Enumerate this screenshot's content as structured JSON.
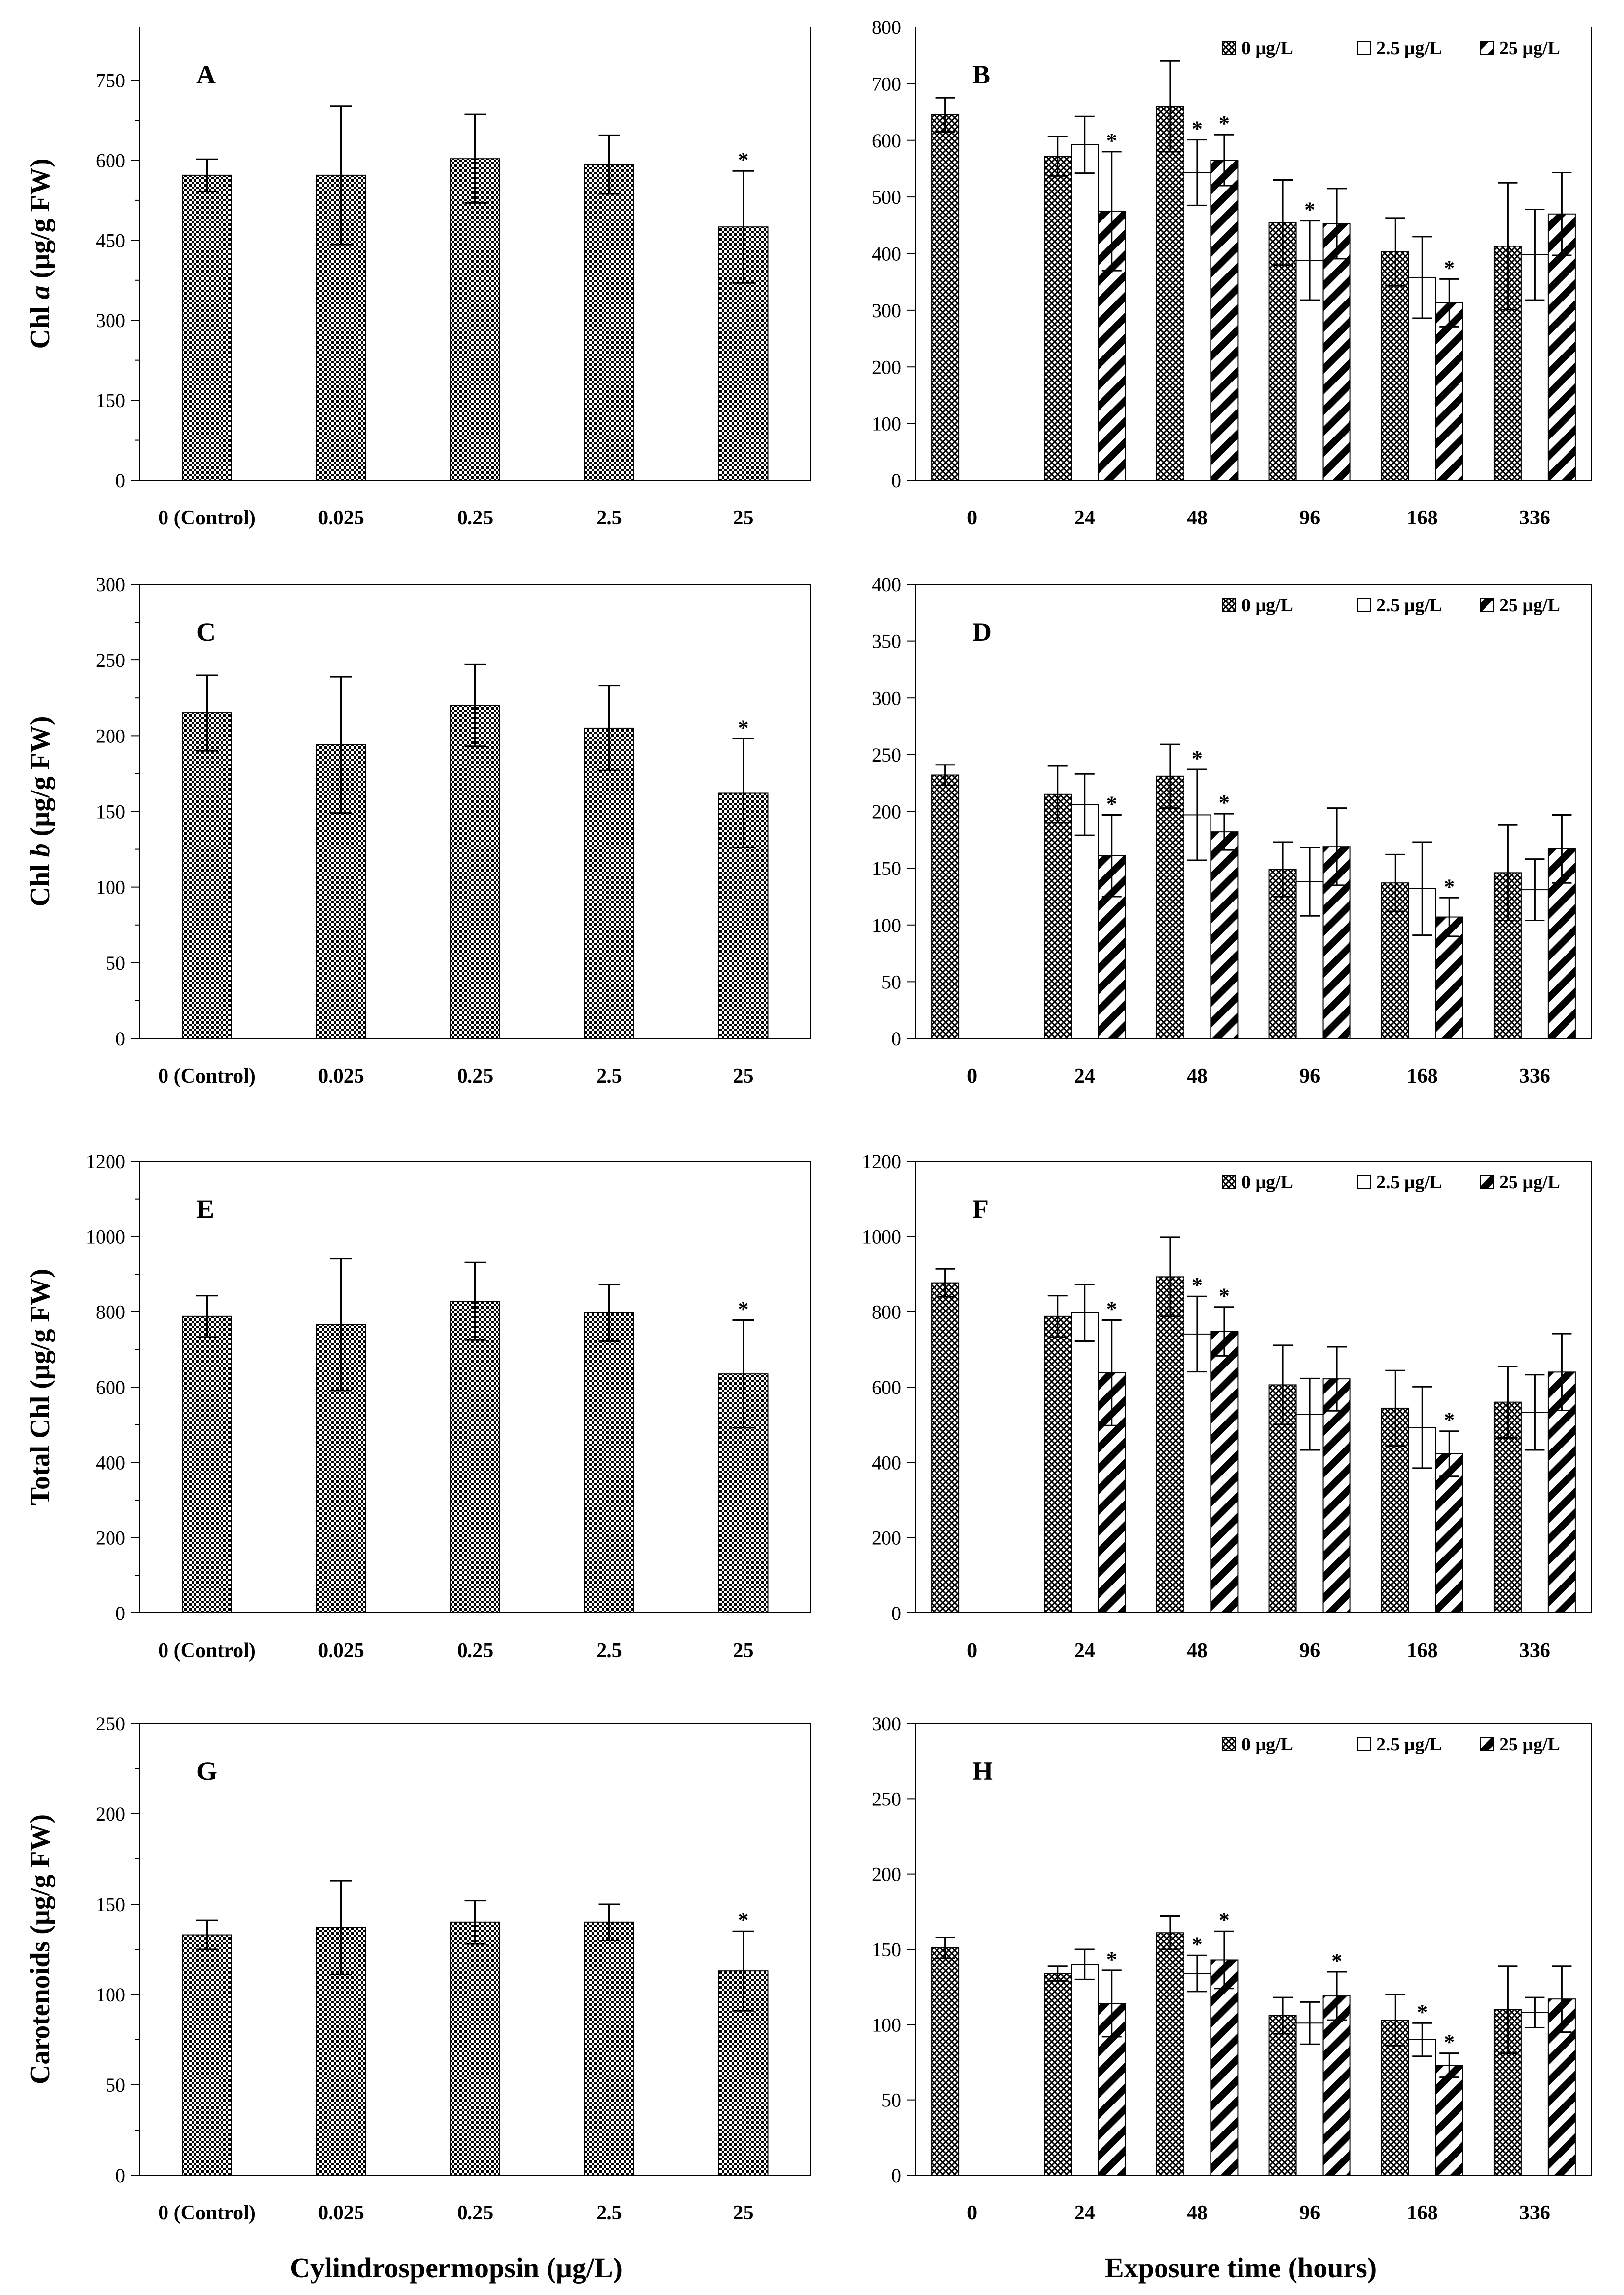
{
  "figure": {
    "xlabel_left": "Cylindrospermopsin (μg/L)",
    "xlabel_right": "Exposure time (hours)"
  },
  "legend_labels": [
    "0 μg/L",
    "2.5 μg/L",
    "25 μg/L"
  ],
  "chart_data": [
    {
      "panel": "A",
      "type": "bar",
      "ylabel_prefix": "Chl ",
      "ylabel_italic": "a",
      "ylabel_suffix": " (μg/g FW)",
      "ylim": [
        0,
        850
      ],
      "yticks": [
        0,
        150,
        300,
        450,
        600,
        750
      ],
      "minor_ticks": true,
      "categories": [
        "0 (Control)",
        "0.025",
        "0.25",
        "2.5",
        "25"
      ],
      "values": [
        572,
        572,
        603,
        592,
        475
      ],
      "errors": [
        30,
        130,
        83,
        55,
        105
      ],
      "significant": [
        false,
        false,
        false,
        false,
        true
      ]
    },
    {
      "panel": "B",
      "type": "bar",
      "ylim": [
        0,
        800
      ],
      "yticks": [
        0,
        100,
        200,
        300,
        400,
        500,
        600,
        700,
        800
      ],
      "minor_ticks": false,
      "categories": [
        "0",
        "24",
        "48",
        "96",
        "168",
        "336"
      ],
      "legend": "top-right",
      "series": [
        {
          "name": "0 μg/L",
          "values": [
            645,
            572,
            660,
            455,
            403,
            413
          ],
          "errors": [
            30,
            35,
            80,
            75,
            60,
            112
          ],
          "significant": [
            false,
            false,
            false,
            false,
            false,
            false
          ]
        },
        {
          "name": "2.5 μg/L",
          "values": [
            0,
            592,
            543,
            388,
            358,
            398
          ],
          "errors": [
            0,
            50,
            58,
            70,
            72,
            80
          ],
          "significant": [
            false,
            false,
            true,
            true,
            false,
            false
          ]
        },
        {
          "name": "25 μg/L",
          "values": [
            0,
            475,
            565,
            453,
            313,
            470
          ],
          "errors": [
            0,
            105,
            45,
            62,
            42,
            73
          ],
          "significant": [
            false,
            true,
            true,
            false,
            true,
            false
          ]
        }
      ]
    },
    {
      "panel": "C",
      "type": "bar",
      "ylabel_prefix": "Chl ",
      "ylabel_italic": "b",
      "ylabel_suffix": " (μg/g FW)",
      "ylim": [
        0,
        300
      ],
      "yticks": [
        0,
        50,
        100,
        150,
        200,
        250,
        300
      ],
      "minor_ticks": true,
      "categories": [
        "0 (Control)",
        "0.025",
        "0.25",
        "2.5",
        "25"
      ],
      "values": [
        215,
        194,
        220,
        205,
        162
      ],
      "errors": [
        25,
        45,
        27,
        28,
        36
      ],
      "significant": [
        false,
        false,
        false,
        false,
        true
      ]
    },
    {
      "panel": "D",
      "type": "bar",
      "ylim": [
        0,
        400
      ],
      "yticks": [
        0,
        50,
        100,
        150,
        200,
        250,
        300,
        350,
        400
      ],
      "minor_ticks": false,
      "categories": [
        "0",
        "24",
        "48",
        "96",
        "168",
        "336"
      ],
      "legend": "top-right",
      "series": [
        {
          "name": "0 μg/L",
          "values": [
            232,
            215,
            231,
            149,
            137,
            146
          ],
          "errors": [
            9,
            25,
            28,
            24,
            25,
            42
          ],
          "significant": [
            false,
            false,
            false,
            false,
            false,
            false
          ]
        },
        {
          "name": "2.5 μg/L",
          "values": [
            0,
            206,
            197,
            138,
            132,
            131
          ],
          "errors": [
            0,
            27,
            40,
            30,
            41,
            27
          ],
          "significant": [
            false,
            false,
            true,
            false,
            false,
            false
          ]
        },
        {
          "name": "25 μg/L",
          "values": [
            0,
            161,
            182,
            169,
            107,
            167
          ],
          "errors": [
            0,
            36,
            16,
            34,
            17,
            30
          ],
          "significant": [
            false,
            true,
            true,
            false,
            true,
            false
          ]
        }
      ]
    },
    {
      "panel": "E",
      "type": "bar",
      "ylabel_prefix": "Total Chl  (μg/g FW)",
      "ylabel_italic": "",
      "ylabel_suffix": "",
      "ylim": [
        0,
        1200
      ],
      "yticks": [
        0,
        200,
        400,
        600,
        800,
        1000,
        1200
      ],
      "minor_ticks": true,
      "categories": [
        "0 (Control)",
        "0.025",
        "0.25",
        "2.5",
        "25"
      ],
      "values": [
        788,
        766,
        828,
        797,
        635
      ],
      "errors": [
        55,
        175,
        103,
        75,
        143
      ],
      "significant": [
        false,
        false,
        false,
        false,
        true
      ]
    },
    {
      "panel": "F",
      "type": "bar",
      "ylim": [
        0,
        1200
      ],
      "yticks": [
        0,
        200,
        400,
        600,
        800,
        1000,
        1200
      ],
      "minor_ticks": false,
      "categories": [
        "0",
        "24",
        "48",
        "96",
        "168",
        "336"
      ],
      "legend": "top-right",
      "series": [
        {
          "name": "0 μg/L",
          "values": [
            877,
            788,
            893,
            606,
            544,
            560
          ],
          "errors": [
            37,
            55,
            105,
            105,
            100,
            95
          ],
          "significant": [
            false,
            false,
            false,
            false,
            false,
            false
          ]
        },
        {
          "name": "2.5 μg/L",
          "values": [
            0,
            797,
            741,
            528,
            493,
            533
          ],
          "errors": [
            0,
            75,
            100,
            95,
            108,
            100
          ],
          "significant": [
            false,
            false,
            true,
            false,
            false,
            false
          ]
        },
        {
          "name": "25 μg/L",
          "values": [
            0,
            638,
            748,
            622,
            423,
            640
          ],
          "errors": [
            0,
            140,
            65,
            85,
            60,
            102
          ],
          "significant": [
            false,
            true,
            true,
            false,
            true,
            false
          ]
        }
      ]
    },
    {
      "panel": "G",
      "type": "bar",
      "ylabel_prefix": "Carotenoids (μg/g FW)",
      "ylabel_italic": "",
      "ylabel_suffix": "",
      "ylim": [
        0,
        250
      ],
      "yticks": [
        0,
        50,
        100,
        150,
        200,
        250
      ],
      "minor_ticks": true,
      "categories": [
        "0 (Control)",
        "0.025",
        "0.25",
        "2.5",
        "25"
      ],
      "values": [
        133,
        137,
        140,
        140,
        113
      ],
      "errors": [
        8,
        26,
        12,
        10,
        22
      ],
      "significant": [
        false,
        false,
        false,
        false,
        true
      ]
    },
    {
      "panel": "H",
      "type": "bar",
      "ylim": [
        0,
        300
      ],
      "yticks": [
        0,
        50,
        100,
        150,
        200,
        250,
        300
      ],
      "minor_ticks": false,
      "categories": [
        "0",
        "24",
        "48",
        "96",
        "168",
        "336"
      ],
      "legend": "top-right",
      "series": [
        {
          "name": "0 μg/L",
          "values": [
            151,
            134,
            161,
            106,
            103,
            110
          ],
          "errors": [
            7,
            5,
            11,
            12,
            17,
            29
          ],
          "significant": [
            false,
            false,
            false,
            false,
            false,
            false
          ]
        },
        {
          "name": "2.5 μg/L",
          "values": [
            0,
            140,
            134,
            101,
            90,
            108
          ],
          "errors": [
            0,
            10,
            12,
            14,
            11,
            10
          ],
          "significant": [
            false,
            false,
            true,
            false,
            true,
            false
          ]
        },
        {
          "name": "25 μg/L",
          "values": [
            0,
            114,
            143,
            119,
            73,
            117
          ],
          "errors": [
            0,
            22,
            19,
            16,
            8,
            22
          ],
          "significant": [
            false,
            true,
            true,
            true,
            true,
            false
          ]
        }
      ]
    }
  ]
}
